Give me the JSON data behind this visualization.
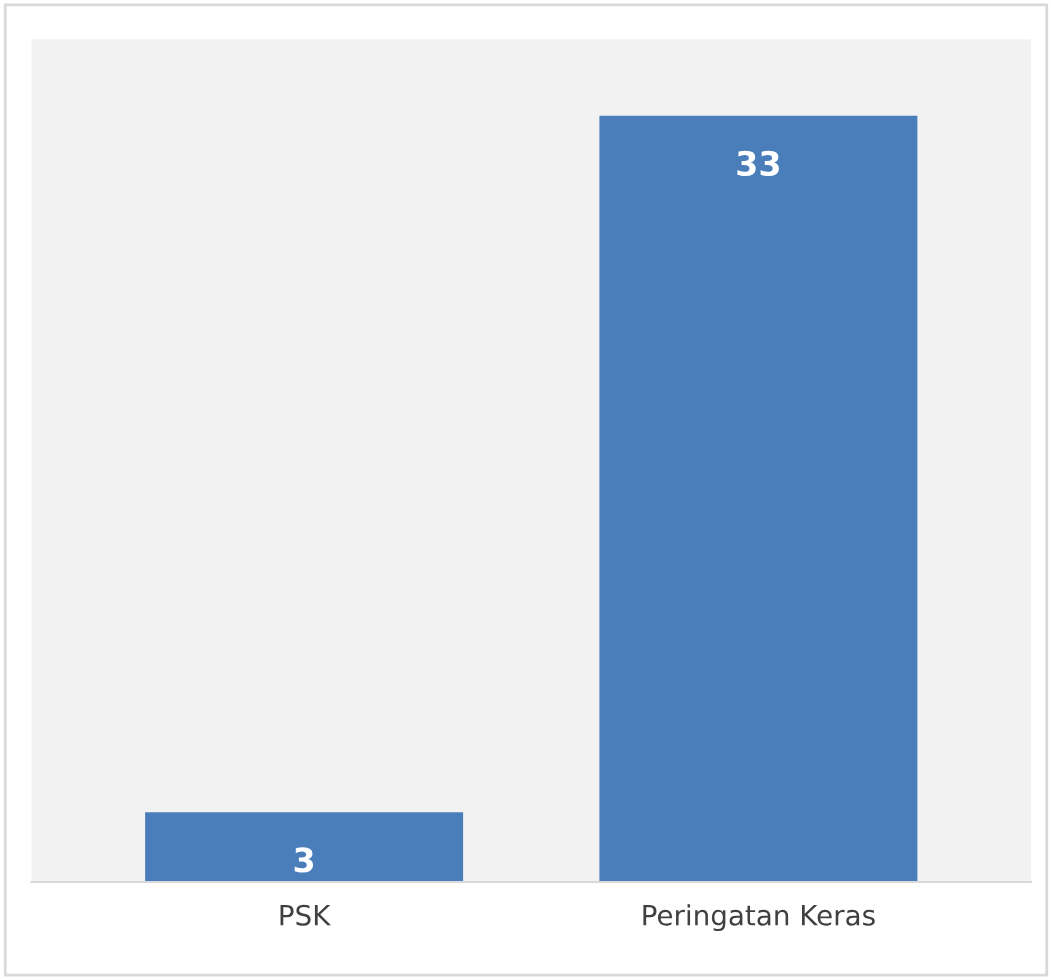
{
  "chart_data": {
    "type": "bar",
    "categories": [
      "PSK",
      "Peringatan Keras"
    ],
    "values": [
      3,
      33
    ],
    "color": "#4a7ebb",
    "data_labels": true,
    "grid": false,
    "legend": false
  }
}
